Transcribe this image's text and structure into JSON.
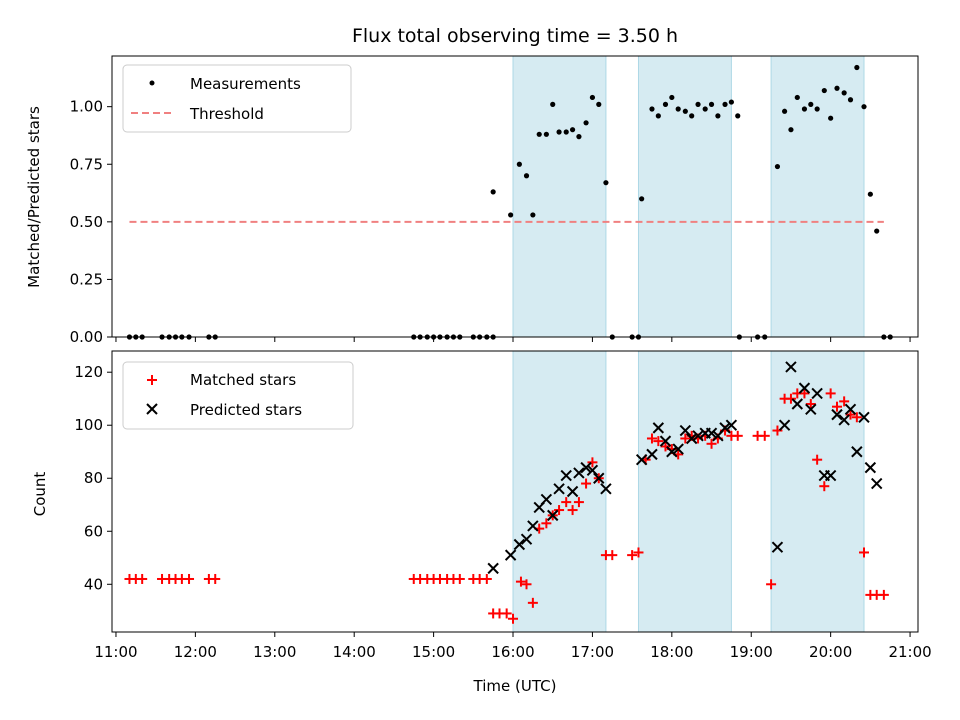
{
  "chart_data": [
    {
      "type": "scatter",
      "title": "Flux total observing time = 3.50 h",
      "xlabel": "",
      "ylabel": "Matched/Predicted stars",
      "ylim": [
        0,
        1.22
      ],
      "xlim": [
        10.95,
        21.1
      ],
      "yticks": [
        0.0,
        0.25,
        0.5,
        0.75,
        1.0
      ],
      "ytick_labels": [
        "0.00",
        "0.25",
        "0.50",
        "0.75",
        "1.00"
      ],
      "legend": "top-left",
      "shaded_intervals": [
        [
          16.0,
          17.17
        ],
        [
          17.58,
          18.75
        ],
        [
          19.25,
          20.42
        ]
      ],
      "threshold": {
        "name": "Threshold",
        "value": 0.5,
        "x_range": [
          11.17,
          20.67
        ],
        "color": "#f08080"
      },
      "series": [
        {
          "name": "Measurements",
          "color": "#000000",
          "points": [
            [
              11.17,
              0
            ],
            [
              11.25,
              0
            ],
            [
              11.33,
              0
            ],
            [
              11.58,
              0
            ],
            [
              11.67,
              0
            ],
            [
              11.75,
              0
            ],
            [
              11.83,
              0
            ],
            [
              11.92,
              0
            ],
            [
              12.17,
              0
            ],
            [
              12.25,
              0
            ],
            [
              14.75,
              0
            ],
            [
              14.83,
              0
            ],
            [
              14.92,
              0
            ],
            [
              15.0,
              0
            ],
            [
              15.08,
              0
            ],
            [
              15.17,
              0
            ],
            [
              15.25,
              0
            ],
            [
              15.33,
              0
            ],
            [
              15.5,
              0
            ],
            [
              15.58,
              0
            ],
            [
              15.67,
              0
            ],
            [
              15.75,
              0
            ],
            [
              15.75,
              0.63
            ],
            [
              15.97,
              0.53
            ],
            [
              16.08,
              0.75
            ],
            [
              16.17,
              0.7
            ],
            [
              16.25,
              0.53
            ],
            [
              16.33,
              0.88
            ],
            [
              16.42,
              0.88
            ],
            [
              16.5,
              1.01
            ],
            [
              16.58,
              0.89
            ],
            [
              16.67,
              0.89
            ],
            [
              16.75,
              0.9
            ],
            [
              16.83,
              0.87
            ],
            [
              16.92,
              0.93
            ],
            [
              17.0,
              1.04
            ],
            [
              17.08,
              1.01
            ],
            [
              17.17,
              0.67
            ],
            [
              17.25,
              0
            ],
            [
              17.5,
              0
            ],
            [
              17.58,
              0
            ],
            [
              17.62,
              0.6
            ],
            [
              17.75,
              0.99
            ],
            [
              17.83,
              0.96
            ],
            [
              17.92,
              1.01
            ],
            [
              18.0,
              1.04
            ],
            [
              18.08,
              0.99
            ],
            [
              18.17,
              0.98
            ],
            [
              18.25,
              0.96
            ],
            [
              18.33,
              1.01
            ],
            [
              18.42,
              0.99
            ],
            [
              18.5,
              1.01
            ],
            [
              18.58,
              0.96
            ],
            [
              18.67,
              1.01
            ],
            [
              18.75,
              1.02
            ],
            [
              18.83,
              0.96
            ],
            [
              18.85,
              0
            ],
            [
              19.08,
              0
            ],
            [
              19.17,
              0
            ],
            [
              19.33,
              0.74
            ],
            [
              19.42,
              0.98
            ],
            [
              19.5,
              0.9
            ],
            [
              19.58,
              1.04
            ],
            [
              19.67,
              0.99
            ],
            [
              19.75,
              1.01
            ],
            [
              19.83,
              0.99
            ],
            [
              19.92,
              1.07
            ],
            [
              20.0,
              0.95
            ],
            [
              20.08,
              1.08
            ],
            [
              20.17,
              1.06
            ],
            [
              20.25,
              1.03
            ],
            [
              20.33,
              1.17
            ],
            [
              20.42,
              1.0
            ],
            [
              20.5,
              0.62
            ],
            [
              20.58,
              0.46
            ],
            [
              20.67,
              0
            ],
            [
              20.75,
              0
            ]
          ]
        }
      ]
    },
    {
      "type": "scatter",
      "title": "",
      "xlabel": "Time (UTC)",
      "ylabel": "Count",
      "ylim": [
        22,
        128
      ],
      "xlim": [
        10.95,
        21.1
      ],
      "yticks": [
        40,
        60,
        80,
        100,
        120
      ],
      "ytick_labels": [
        "40",
        "60",
        "80",
        "100",
        "120"
      ],
      "xticks": [
        11,
        12,
        13,
        14,
        15,
        16,
        17,
        18,
        19,
        20,
        21
      ],
      "xtick_labels": [
        "11:00",
        "12:00",
        "13:00",
        "14:00",
        "15:00",
        "16:00",
        "17:00",
        "18:00",
        "19:00",
        "20:00",
        "21:00"
      ],
      "legend": "top-left",
      "shaded_intervals": [
        [
          16.0,
          17.17
        ],
        [
          17.58,
          18.75
        ],
        [
          19.25,
          20.42
        ]
      ],
      "series": [
        {
          "name": "Matched stars",
          "marker": "plus",
          "color": "#ff0000",
          "points": [
            [
              11.17,
              42
            ],
            [
              11.25,
              42
            ],
            [
              11.33,
              42
            ],
            [
              11.58,
              42
            ],
            [
              11.67,
              42
            ],
            [
              11.75,
              42
            ],
            [
              11.83,
              42
            ],
            [
              11.92,
              42
            ],
            [
              12.17,
              42
            ],
            [
              12.25,
              42
            ],
            [
              14.75,
              42
            ],
            [
              14.83,
              42
            ],
            [
              14.92,
              42
            ],
            [
              15.0,
              42
            ],
            [
              15.08,
              42
            ],
            [
              15.17,
              42
            ],
            [
              15.25,
              42
            ],
            [
              15.33,
              42
            ],
            [
              15.5,
              42
            ],
            [
              15.58,
              42
            ],
            [
              15.67,
              42
            ],
            [
              15.75,
              29
            ],
            [
              15.83,
              29
            ],
            [
              15.92,
              29
            ],
            [
              16.0,
              27
            ],
            [
              16.1,
              41
            ],
            [
              16.17,
              40
            ],
            [
              16.25,
              33
            ],
            [
              16.33,
              61
            ],
            [
              16.42,
              63
            ],
            [
              16.5,
              66
            ],
            [
              16.58,
              68
            ],
            [
              16.67,
              71
            ],
            [
              16.75,
              68
            ],
            [
              16.83,
              71
            ],
            [
              16.92,
              78
            ],
            [
              17.0,
              86
            ],
            [
              17.08,
              80
            ],
            [
              17.17,
              51
            ],
            [
              17.25,
              51
            ],
            [
              17.5,
              51
            ],
            [
              17.58,
              52
            ],
            [
              17.67,
              87
            ],
            [
              17.75,
              95
            ],
            [
              17.83,
              94
            ],
            [
              17.92,
              92
            ],
            [
              18.0,
              91
            ],
            [
              18.08,
              89
            ],
            [
              18.17,
              95
            ],
            [
              18.25,
              96
            ],
            [
              18.33,
              95
            ],
            [
              18.42,
              96
            ],
            [
              18.5,
              93
            ],
            [
              18.58,
              95
            ],
            [
              18.67,
              98
            ],
            [
              18.75,
              96
            ],
            [
              18.83,
              96
            ],
            [
              19.08,
              96
            ],
            [
              19.17,
              96
            ],
            [
              19.25,
              40
            ],
            [
              19.33,
              98
            ],
            [
              19.42,
              110
            ],
            [
              19.5,
              110
            ],
            [
              19.58,
              112
            ],
            [
              19.67,
              112
            ],
            [
              19.75,
              108
            ],
            [
              19.83,
              87
            ],
            [
              19.92,
              77
            ],
            [
              20.0,
              112
            ],
            [
              20.08,
              107
            ],
            [
              20.17,
              109
            ],
            [
              20.25,
              104
            ],
            [
              20.33,
              103
            ],
            [
              20.42,
              52
            ],
            [
              20.5,
              36
            ],
            [
              20.58,
              36
            ],
            [
              20.67,
              36
            ]
          ]
        },
        {
          "name": "Predicted stars",
          "marker": "x",
          "color": "#000000",
          "points": [
            [
              15.75,
              46
            ],
            [
              15.97,
              51
            ],
            [
              16.08,
              55
            ],
            [
              16.17,
              57
            ],
            [
              16.25,
              62
            ],
            [
              16.33,
              69
            ],
            [
              16.42,
              72
            ],
            [
              16.5,
              66
            ],
            [
              16.58,
              76
            ],
            [
              16.67,
              81
            ],
            [
              16.75,
              75
            ],
            [
              16.83,
              82
            ],
            [
              16.92,
              84
            ],
            [
              17.0,
              83
            ],
            [
              17.08,
              80
            ],
            [
              17.17,
              76
            ],
            [
              17.62,
              87
            ],
            [
              17.75,
              89
            ],
            [
              17.83,
              99
            ],
            [
              17.92,
              94
            ],
            [
              18.0,
              90
            ],
            [
              18.08,
              91
            ],
            [
              18.17,
              98
            ],
            [
              18.25,
              95
            ],
            [
              18.33,
              96
            ],
            [
              18.42,
              97
            ],
            [
              18.5,
              97
            ],
            [
              18.58,
              96
            ],
            [
              18.67,
              99
            ],
            [
              18.75,
              100
            ],
            [
              19.33,
              54
            ],
            [
              19.42,
              100
            ],
            [
              19.5,
              122
            ],
            [
              19.58,
              108
            ],
            [
              19.67,
              114
            ],
            [
              19.75,
              106
            ],
            [
              19.83,
              112
            ],
            [
              19.92,
              81
            ],
            [
              20.0,
              81
            ],
            [
              20.08,
              104
            ],
            [
              20.17,
              102
            ],
            [
              20.25,
              106
            ],
            [
              20.33,
              90
            ],
            [
              20.42,
              103
            ],
            [
              20.5,
              84
            ],
            [
              20.58,
              78
            ]
          ]
        }
      ]
    }
  ]
}
